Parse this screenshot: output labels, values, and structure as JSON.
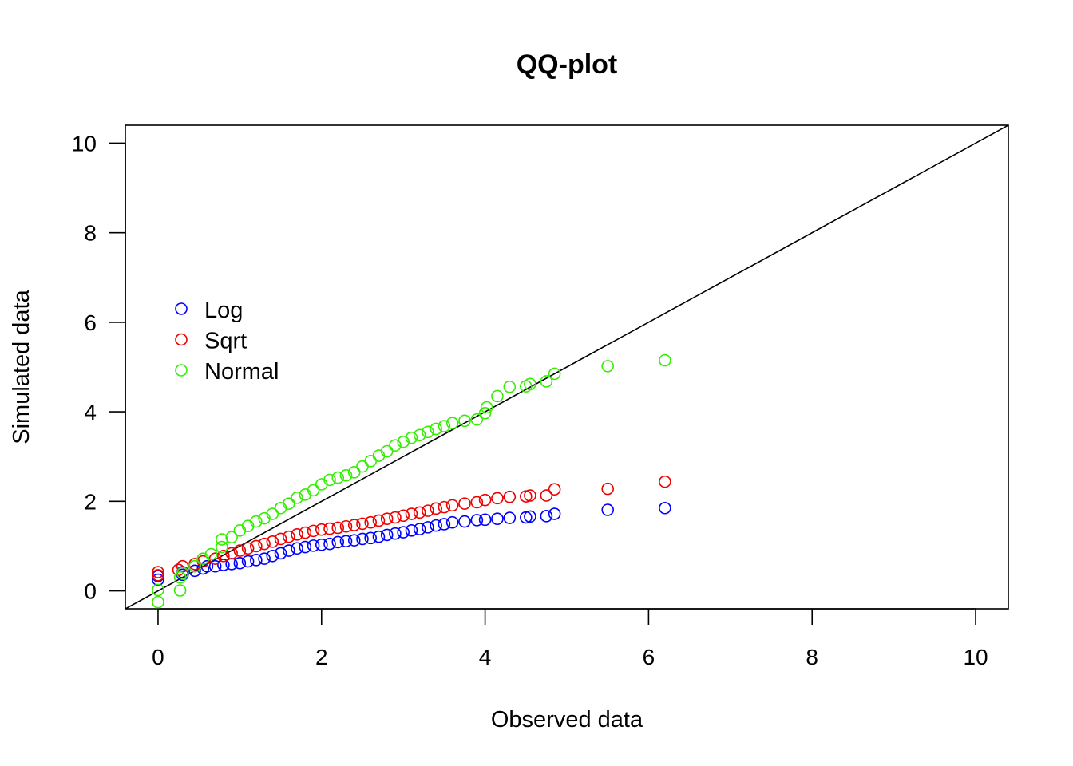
{
  "chart_data": {
    "type": "scatter",
    "title": "QQ-plot",
    "xlabel": "Observed data",
    "ylabel": "Simulated data",
    "xlim": [
      -0.4,
      10.4
    ],
    "ylim": [
      -0.4,
      10.4
    ],
    "x_ticks": [
      0,
      2,
      4,
      6,
      8,
      10
    ],
    "y_ticks": [
      0,
      2,
      4,
      6,
      8,
      10
    ],
    "reference_line": {
      "slope": 1,
      "intercept": 0,
      "color": "#000000"
    },
    "legend_position": "upper-left",
    "marker": "open-circle",
    "series": [
      {
        "name": "Log",
        "color": "#0000ff",
        "points": [
          [
            0.0,
            0.25
          ],
          [
            0.0,
            0.33
          ],
          [
            0.3,
            0.36
          ],
          [
            0.3,
            0.42
          ],
          [
            0.45,
            0.45
          ],
          [
            0.55,
            0.5
          ],
          [
            0.6,
            0.55
          ],
          [
            0.7,
            0.55
          ],
          [
            0.8,
            0.58
          ],
          [
            0.9,
            0.6
          ],
          [
            1.0,
            0.62
          ],
          [
            1.1,
            0.66
          ],
          [
            1.2,
            0.69
          ],
          [
            1.3,
            0.72
          ],
          [
            1.4,
            0.78
          ],
          [
            1.5,
            0.84
          ],
          [
            1.6,
            0.9
          ],
          [
            1.7,
            0.95
          ],
          [
            1.8,
            0.98
          ],
          [
            1.9,
            1.01
          ],
          [
            2.0,
            1.03
          ],
          [
            2.1,
            1.05
          ],
          [
            2.2,
            1.09
          ],
          [
            2.3,
            1.11
          ],
          [
            2.4,
            1.13
          ],
          [
            2.5,
            1.16
          ],
          [
            2.6,
            1.18
          ],
          [
            2.7,
            1.21
          ],
          [
            2.8,
            1.25
          ],
          [
            2.9,
            1.28
          ],
          [
            3.0,
            1.31
          ],
          [
            3.1,
            1.35
          ],
          [
            3.2,
            1.38
          ],
          [
            3.3,
            1.42
          ],
          [
            3.4,
            1.46
          ],
          [
            3.5,
            1.49
          ],
          [
            3.6,
            1.53
          ],
          [
            3.75,
            1.55
          ],
          [
            3.9,
            1.58
          ],
          [
            4.0,
            1.59
          ],
          [
            4.15,
            1.61
          ],
          [
            4.3,
            1.63
          ],
          [
            4.5,
            1.64
          ],
          [
            4.55,
            1.66
          ],
          [
            4.75,
            1.67
          ],
          [
            4.85,
            1.72
          ],
          [
            5.5,
            1.81
          ],
          [
            6.2,
            1.85
          ]
        ]
      },
      {
        "name": "Sqrt",
        "color": "#ee0000",
        "points": [
          [
            0.0,
            0.35
          ],
          [
            0.0,
            0.42
          ],
          [
            0.25,
            0.47
          ],
          [
            0.3,
            0.55
          ],
          [
            0.45,
            0.6
          ],
          [
            0.55,
            0.66
          ],
          [
            0.7,
            0.72
          ],
          [
            0.8,
            0.78
          ],
          [
            0.9,
            0.84
          ],
          [
            1.0,
            0.9
          ],
          [
            1.1,
            0.95
          ],
          [
            1.2,
            1.0
          ],
          [
            1.3,
            1.05
          ],
          [
            1.4,
            1.1
          ],
          [
            1.5,
            1.16
          ],
          [
            1.6,
            1.21
          ],
          [
            1.7,
            1.26
          ],
          [
            1.8,
            1.3
          ],
          [
            1.9,
            1.34
          ],
          [
            2.0,
            1.37
          ],
          [
            2.1,
            1.39
          ],
          [
            2.2,
            1.41
          ],
          [
            2.3,
            1.44
          ],
          [
            2.4,
            1.47
          ],
          [
            2.5,
            1.5
          ],
          [
            2.6,
            1.53
          ],
          [
            2.7,
            1.57
          ],
          [
            2.8,
            1.61
          ],
          [
            2.9,
            1.64
          ],
          [
            3.0,
            1.68
          ],
          [
            3.1,
            1.72
          ],
          [
            3.2,
            1.75
          ],
          [
            3.3,
            1.79
          ],
          [
            3.4,
            1.84
          ],
          [
            3.5,
            1.87
          ],
          [
            3.6,
            1.91
          ],
          [
            3.75,
            1.95
          ],
          [
            3.9,
            1.98
          ],
          [
            4.0,
            2.03
          ],
          [
            4.15,
            2.07
          ],
          [
            4.3,
            2.1
          ],
          [
            4.5,
            2.11
          ],
          [
            4.55,
            2.13
          ],
          [
            4.75,
            2.13
          ],
          [
            4.85,
            2.27
          ],
          [
            5.5,
            2.28
          ],
          [
            6.2,
            2.44
          ]
        ]
      },
      {
        "name": "Normal",
        "color": "#33ee00",
        "points": [
          [
            0.0,
            -0.25
          ],
          [
            0.0,
            0.02
          ],
          [
            0.27,
            0.01
          ],
          [
            0.27,
            0.3
          ],
          [
            0.3,
            0.4
          ],
          [
            0.45,
            0.55
          ],
          [
            0.55,
            0.72
          ],
          [
            0.65,
            0.82
          ],
          [
            0.78,
            0.98
          ],
          [
            0.78,
            1.15
          ],
          [
            0.9,
            1.2
          ],
          [
            1.0,
            1.35
          ],
          [
            1.1,
            1.45
          ],
          [
            1.2,
            1.55
          ],
          [
            1.3,
            1.62
          ],
          [
            1.4,
            1.72
          ],
          [
            1.5,
            1.85
          ],
          [
            1.6,
            1.95
          ],
          [
            1.7,
            2.08
          ],
          [
            1.8,
            2.15
          ],
          [
            1.9,
            2.25
          ],
          [
            2.0,
            2.38
          ],
          [
            2.1,
            2.48
          ],
          [
            2.2,
            2.53
          ],
          [
            2.3,
            2.58
          ],
          [
            2.4,
            2.65
          ],
          [
            2.5,
            2.78
          ],
          [
            2.6,
            2.9
          ],
          [
            2.7,
            3.02
          ],
          [
            2.8,
            3.12
          ],
          [
            2.9,
            3.25
          ],
          [
            3.0,
            3.33
          ],
          [
            3.1,
            3.42
          ],
          [
            3.2,
            3.48
          ],
          [
            3.3,
            3.55
          ],
          [
            3.4,
            3.62
          ],
          [
            3.5,
            3.68
          ],
          [
            3.6,
            3.75
          ],
          [
            3.75,
            3.8
          ],
          [
            3.9,
            3.83
          ],
          [
            4.0,
            3.97
          ],
          [
            4.02,
            4.1
          ],
          [
            4.15,
            4.35
          ],
          [
            4.3,
            4.56
          ],
          [
            4.5,
            4.57
          ],
          [
            4.55,
            4.62
          ],
          [
            4.75,
            4.68
          ],
          [
            4.85,
            4.85
          ],
          [
            5.5,
            5.02
          ],
          [
            6.2,
            5.15
          ]
        ]
      }
    ]
  }
}
